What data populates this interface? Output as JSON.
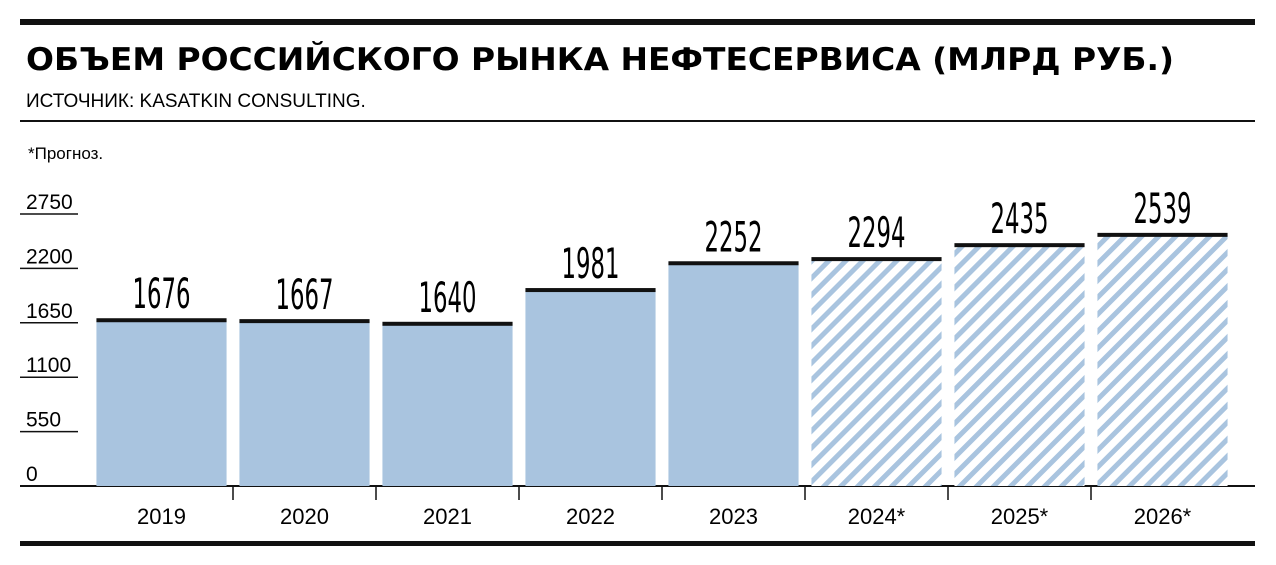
{
  "chart_data": {
    "type": "bar",
    "title": "ОБЪЕМ РОССИЙСКОГО РЫНКА НЕФТЕСЕРВИСА (МЛРД РУБ.)",
    "subtitle": "ИСТОЧНИК: KASATKIN CONSULTING.",
    "note": "*Прогноз.",
    "categories": [
      "2019",
      "2020",
      "2021",
      "2022",
      "2023",
      "2024*",
      "2025*",
      "2026*"
    ],
    "values": [
      1676,
      1667,
      1640,
      1981,
      2252,
      2294,
      2435,
      2539
    ],
    "styles": [
      "solid",
      "solid",
      "solid",
      "solid",
      "solid",
      "hatched",
      "hatched",
      "hatched"
    ],
    "color": "#a9c4df",
    "ylim": [
      0,
      2750
    ],
    "yticks": [
      0,
      550,
      1100,
      1650,
      2200,
      2750
    ]
  }
}
